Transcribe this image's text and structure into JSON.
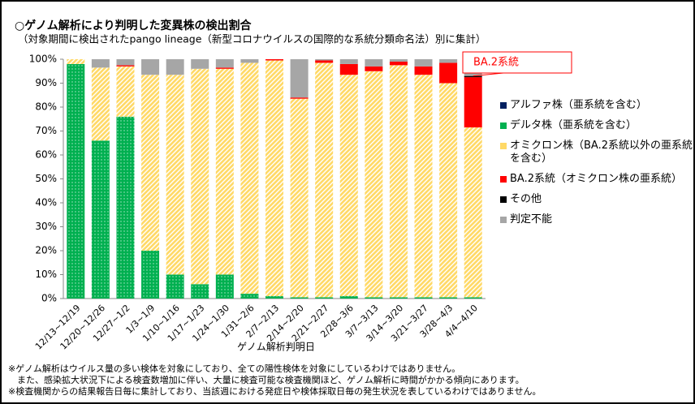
{
  "chart_data": {
    "type": "bar",
    "stacked": true,
    "title": "○ゲノム解析により判明した変異株の検出割合",
    "subtitle": "（対象期間に検出されたpango lineage（新型コロナウイルスの国際的な系統分類命名法）別に集計）",
    "x_label": "ゲノム解析判明日",
    "annotation": "BA.2系統",
    "notes": [
      "※ゲノム解析はウイルス量の多い検体を対象にしており、全ての陽性検体を対象にしているわけではありません。",
      "　また、感染拡大状況下による検査数増加に伴い、大量に検査可能な検査機関ほど、ゲノム解析に時間がかかる傾向にあります。",
      "※検査機関からの結果報告日毎に集計しており、当該週における発症日や検体採取日毎の発生状況を表しているわけではありません。"
    ],
    "categories": [
      "12/13~12/19",
      "12/20~12/26",
      "12/27~1/2",
      "1/3~1/9",
      "1/10~1/16",
      "1/17~1/23",
      "1/24~1/30",
      "1/31~2/6",
      "2/7~2/13",
      "2/14~2/20",
      "2/21~2/27",
      "2/28~3/6",
      "3/7~3/13",
      "3/14~3/20",
      "3/21~3/27",
      "3/28~4/3",
      "4/4~4/10"
    ],
    "series": [
      {
        "name": "アルファ株（亜系統を含む）",
        "color": "#002060",
        "values": [
          0,
          0,
          0,
          0,
          0,
          0,
          0,
          0,
          0,
          0,
          0,
          0,
          0,
          0,
          0,
          0,
          0
        ]
      },
      {
        "name": "デルタ株（亜系統を含む）",
        "color": "#00b050",
        "values": [
          98,
          66,
          76,
          20,
          10,
          6,
          10,
          2,
          1,
          0.5,
          0.5,
          1,
          0.5,
          0.5,
          0.5,
          0.5,
          0.5
        ]
      },
      {
        "name": "オミクロン株（BA.2系統以外の亜系統を含む）",
        "color": "#ffd966",
        "values": [
          2,
          30.5,
          21,
          73.5,
          83.5,
          90,
          86,
          96.5,
          98.5,
          83,
          98,
          92.5,
          94.5,
          97,
          93,
          89.5,
          71
        ]
      },
      {
        "name": "BA.2系統（オミクロン株の亜系統）",
        "color": "#ff0000",
        "values": [
          0,
          0,
          0.5,
          0,
          0,
          0,
          0.5,
          0,
          0.5,
          0.5,
          1,
          4.5,
          2,
          1.5,
          3.5,
          8.5,
          21
        ]
      },
      {
        "name": "その他",
        "color": "#000000",
        "values": [
          0,
          0,
          0,
          0,
          0,
          0,
          0,
          0,
          0,
          0,
          0,
          0,
          0,
          0,
          0,
          0,
          0.5
        ]
      },
      {
        "name": "判定不能",
        "color": "#a6a6a6",
        "values": [
          0,
          3.5,
          2.5,
          6.5,
          6.5,
          4,
          3.5,
          1.5,
          0,
          16,
          0.5,
          2,
          3,
          1,
          3,
          1.5,
          7
        ]
      }
    ],
    "ylim": [
      0,
      100
    ],
    "yticks": [
      {
        "value": 0,
        "label": "0%"
      },
      {
        "value": 10,
        "label": "10%"
      },
      {
        "value": 20,
        "label": "20%"
      },
      {
        "value": 30,
        "label": "30%"
      },
      {
        "value": 40,
        "label": "40%"
      },
      {
        "value": 50,
        "label": "50%"
      },
      {
        "value": 60,
        "label": "60%"
      },
      {
        "value": 70,
        "label": "70%"
      },
      {
        "value": 80,
        "label": "80%"
      },
      {
        "value": 90,
        "label": "90%"
      },
      {
        "value": 100,
        "label": "100%"
      }
    ],
    "legend": "right",
    "grid": false
  }
}
